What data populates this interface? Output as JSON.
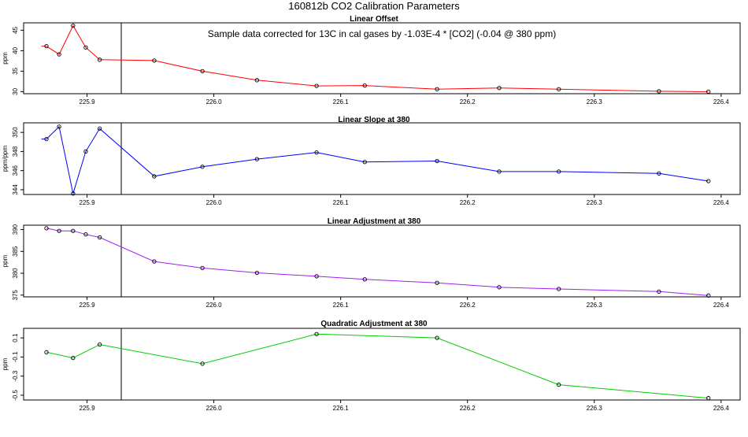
{
  "title": "160812b   CO2 Calibration Parameters",
  "annotation": "Sample data corrected for 13C in cal gases by -1.03E-4 * [CO2] (-0.04 @ 380 ppm)",
  "chart_data": [
    {
      "type": "line",
      "title": "Linear Offset",
      "ylabel": "ppm",
      "xlim": [
        225.85,
        226.415
      ],
      "ylim": [
        29.5,
        46.8
      ],
      "x_ticks": [
        225.9,
        226.0,
        226.1,
        226.2,
        226.3,
        226.4
      ],
      "x_tick_labels": [
        "225.9",
        "226.0",
        "226.1",
        "226.2",
        "226.3",
        "226.4"
      ],
      "y_ticks": [
        30,
        35,
        40,
        45
      ],
      "y_tick_labels": [
        "30",
        "35",
        "40",
        "45"
      ],
      "color": "#ff0000",
      "vline": 225.927,
      "lead_in": [
        225.864,
        41.1
      ],
      "series": [
        {
          "x": [
            225.868,
            225.878,
            225.889,
            225.899,
            225.91,
            225.953,
            225.991,
            226.034,
            226.081,
            226.119,
            226.176,
            226.225,
            226.272,
            226.351,
            226.39
          ],
          "y": [
            41.1,
            39.1,
            46.1,
            40.8,
            37.8,
            37.6,
            35.0,
            32.8,
            31.4,
            31.5,
            30.6,
            30.9,
            30.6,
            30.1,
            30.0
          ]
        }
      ]
    },
    {
      "type": "line",
      "title": "Linear Slope at 380",
      "ylabel": "ppm/ppm",
      "xlim": [
        225.85,
        226.415
      ],
      "ylim": [
        343.5,
        351.0
      ],
      "x_ticks": [
        225.9,
        226.0,
        226.1,
        226.2,
        226.3,
        226.4
      ],
      "x_tick_labels": [
        "225.9",
        "226.0",
        "226.1",
        "226.2",
        "226.3",
        "226.4"
      ],
      "y_ticks": [
        344,
        346,
        348,
        350
      ],
      "y_tick_labels": [
        "344",
        "346",
        "348",
        "350"
      ],
      "color": "#0000ff",
      "vline": 225.927,
      "lead_in": [
        225.864,
        349.3
      ],
      "series": [
        {
          "x": [
            225.868,
            225.878,
            225.889,
            225.899,
            225.91,
            225.953,
            225.991,
            226.034,
            226.081,
            226.119,
            226.176,
            226.225,
            226.272,
            226.351,
            226.39
          ],
          "y": [
            349.3,
            350.6,
            343.6,
            348.0,
            350.4,
            345.4,
            346.4,
            347.2,
            347.9,
            346.9,
            347.0,
            345.9,
            345.9,
            345.7,
            344.9
          ]
        }
      ]
    },
    {
      "type": "line",
      "title": "Linear Adjustment at 380",
      "ylabel": "ppm",
      "xlim": [
        225.85,
        226.415
      ],
      "ylim": [
        374.6,
        391.0
      ],
      "x_ticks": [
        225.9,
        226.0,
        226.1,
        226.2,
        226.3,
        226.4
      ],
      "x_tick_labels": [
        "225.9",
        "226.0",
        "226.1",
        "226.2",
        "226.3",
        "226.4"
      ],
      "y_ticks": [
        375,
        380,
        385,
        390
      ],
      "y_tick_labels": [
        "375",
        "380",
        "385",
        "390"
      ],
      "color": "#a020f0",
      "vline": 225.927,
      "series": [
        {
          "x": [
            225.868,
            225.878,
            225.889,
            225.899,
            225.91,
            225.953,
            225.991,
            226.034,
            226.081,
            226.119,
            226.176,
            226.225,
            226.272,
            226.351,
            226.39
          ],
          "y": [
            390.3,
            389.7,
            389.7,
            388.9,
            388.2,
            382.7,
            381.2,
            380.1,
            379.3,
            378.6,
            377.8,
            376.8,
            376.4,
            375.8,
            374.9
          ]
        }
      ]
    },
    {
      "type": "line",
      "title": "Quadratic Adjustment at 380",
      "ylabel": "ppm",
      "xlim": [
        225.85,
        226.415
      ],
      "ylim": [
        -0.55,
        0.2
      ],
      "x_ticks": [
        225.9,
        226.0,
        226.1,
        226.2,
        226.3,
        226.4
      ],
      "x_tick_labels": [
        "225.9",
        "226.0",
        "226.1",
        "226.2",
        "226.3",
        "226.4"
      ],
      "y_ticks": [
        -0.5,
        -0.3,
        -0.1,
        0.1
      ],
      "y_tick_labels": [
        "-0.5",
        "-0.3",
        "-0.1",
        "0.1"
      ],
      "color": "#00cc00",
      "vline": 225.927,
      "series": [
        {
          "x": [
            225.868,
            225.889,
            225.91,
            225.991,
            226.081,
            226.176,
            226.272,
            226.39
          ],
          "y": [
            -0.05,
            -0.11,
            0.03,
            -0.17,
            0.14,
            0.1,
            -0.39,
            -0.53
          ]
        }
      ]
    }
  ]
}
